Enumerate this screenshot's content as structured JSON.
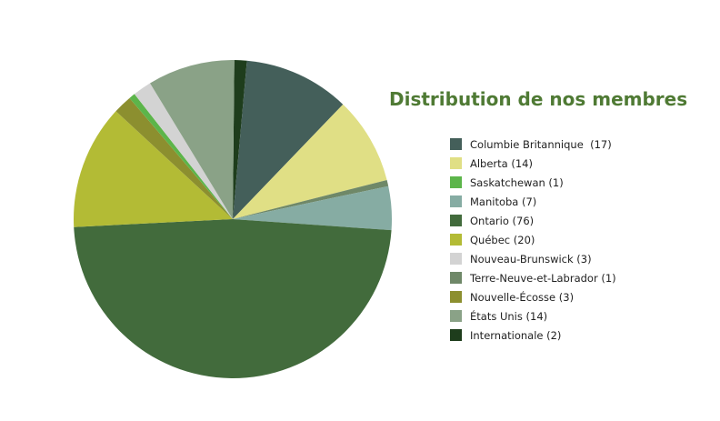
{
  "chart_data": {
    "type": "pie",
    "title": "Distribution de nos membres",
    "slices": [
      {
        "label": "Columbie Britannique  (17)",
        "value": 17,
        "color": "#445f5a"
      },
      {
        "label": "Alberta (14)",
        "value": 14,
        "color": "#e0df85"
      },
      {
        "label": "Saskatchewan (1)",
        "value": 1,
        "color": "#5cb54a"
      },
      {
        "label": "Manitoba (7)",
        "value": 7,
        "color": "#86aca3"
      },
      {
        "label": "Ontario (76)",
        "value": 76,
        "color": "#426b3c"
      },
      {
        "label": "Québec (20)",
        "value": 20,
        "color": "#b3bb35"
      },
      {
        "label": "Nouveau-Brunswick (3)",
        "value": 3,
        "color": "#d3d3d3"
      },
      {
        "label": "Terre-Neuve-et-Labrador (1)",
        "value": 1,
        "color": "#6f8868"
      },
      {
        "label": "Nouvelle-Écosse (3)",
        "value": 3,
        "color": "#8c8f2f"
      },
      {
        "label": "États Unis (14)",
        "value": 14,
        "color": "#8aa287"
      },
      {
        "label": "Internationale (2)",
        "value": 2,
        "color": "#1e3d1c"
      }
    ],
    "draw_order": [
      "Internationale (2)",
      "Columbie Britannique  (17)",
      "Alberta (14)",
      "Terre-Neuve-et-Labrador (1)",
      "Manitoba (7)",
      "Ontario (76)",
      "Québec (20)",
      "Nouvelle-Écosse (3)",
      "Saskatchewan (1)",
      "Nouveau-Brunswick (3)",
      "États Unis (14)"
    ],
    "legend_position": "right"
  }
}
